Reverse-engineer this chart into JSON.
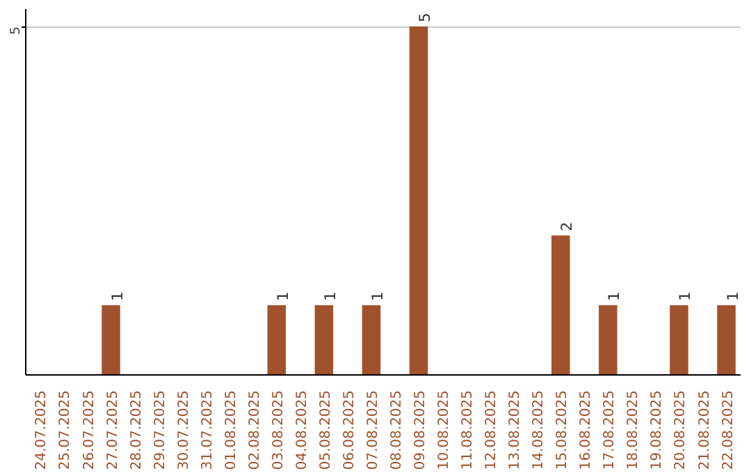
{
  "chart_data": {
    "type": "bar",
    "categories": [
      "24.07.2025",
      "25.07.2025",
      "26.07.2025",
      "27.07.2025",
      "28.07.2025",
      "29.07.2025",
      "30.07.2025",
      "31.07.2025",
      "01.08.2025",
      "02.08.2025",
      "03.08.2025",
      "04.08.2025",
      "05.08.2025",
      "06.08.2025",
      "07.08.2025",
      "08.08.2025",
      "09.08.2025",
      "10.08.2025",
      "11.08.2025",
      "12.08.2025",
      "13.08.2025",
      "14.08.2025",
      "15.08.2025",
      "16.08.2025",
      "17.08.2025",
      "18.08.2025",
      "19.08.2025",
      "20.08.2025",
      "21.08.2025",
      "22.08.2025"
    ],
    "values": [
      0,
      0,
      0,
      1,
      0,
      0,
      0,
      0,
      0,
      0,
      1,
      0,
      1,
      0,
      1,
      0,
      5,
      0,
      0,
      0,
      0,
      0,
      2,
      0,
      1,
      0,
      0,
      1,
      0,
      1
    ],
    "value_labels": [
      null,
      null,
      null,
      "1",
      null,
      null,
      null,
      null,
      null,
      null,
      "1",
      null,
      "1",
      null,
      "1",
      null,
      "5",
      null,
      null,
      null,
      null,
      null,
      "2",
      null,
      "1",
      null,
      null,
      "1",
      null,
      "1"
    ],
    "color": "#a0522d",
    "ylim": [
      0,
      5.25
    ],
    "yticks": [
      5
    ],
    "grid": "y"
  }
}
